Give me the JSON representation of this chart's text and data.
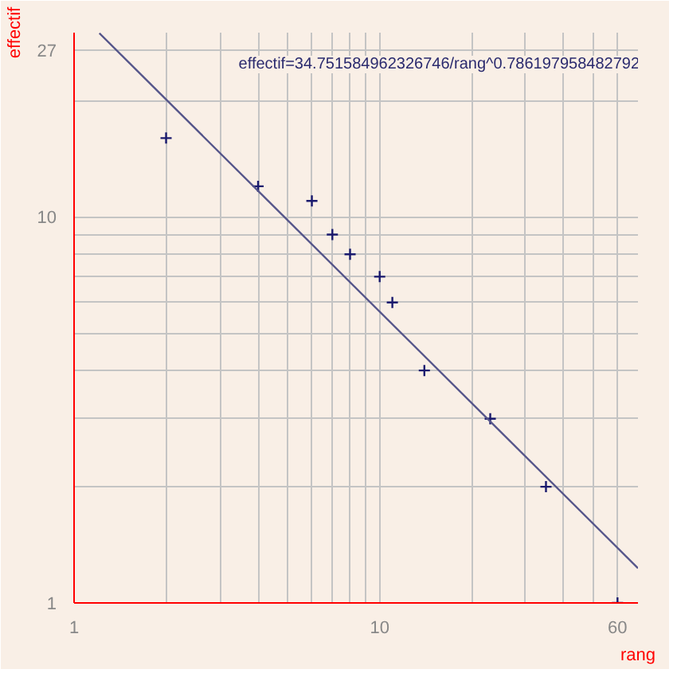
{
  "chart_data": {
    "type": "scatter",
    "xlabel": "rang",
    "ylabel": "effectif",
    "x": [
      2,
      4,
      6,
      7,
      8,
      10,
      11,
      14,
      23,
      35,
      60
    ],
    "series": [
      {
        "color": "#1a1a6e",
        "values": [
          16,
          12,
          11,
          9,
          8,
          7,
          6,
          4,
          3,
          2,
          1
        ],
        "marker": "cross"
      },
      {
        "type": "line",
        "color": "#55558a",
        "x": [
          1.21,
          70
        ],
        "values": [
          29.9,
          1.23
        ],
        "line_style": "solid"
      }
    ],
    "annotations": [
      "effectif=34.751584962326746/rang^0.786197958482792"
    ],
    "log": "xy",
    "grid": true,
    "xlim": [
      1,
      70
    ],
    "ylim": [
      1,
      30
    ],
    "xticks": [
      1,
      {
        "value": 2,
        "label": null
      },
      {
        "value": 3,
        "label": null
      },
      {
        "value": 4,
        "label": null
      },
      {
        "value": 5,
        "label": null
      },
      {
        "value": 6,
        "label": null
      },
      {
        "value": 7,
        "label": null
      },
      {
        "value": 8,
        "label": null
      },
      {
        "value": 9,
        "label": null
      },
      10,
      {
        "value": 20,
        "label": null
      },
      {
        "value": 30,
        "label": null
      },
      {
        "value": 40,
        "label": null
      },
      {
        "value": 50,
        "label": null
      },
      60
    ],
    "yticks": [
      1,
      {
        "value": 2,
        "label": null
      },
      {
        "value": 3,
        "label": null
      },
      {
        "value": 4,
        "label": null
      },
      {
        "value": 5,
        "label": null
      },
      {
        "value": 6,
        "label": null
      },
      {
        "value": 7,
        "label": null
      },
      {
        "value": 8,
        "label": null
      },
      {
        "value": 9,
        "label": null
      },
      10,
      {
        "value": 20,
        "label": null
      },
      27
    ]
  }
}
